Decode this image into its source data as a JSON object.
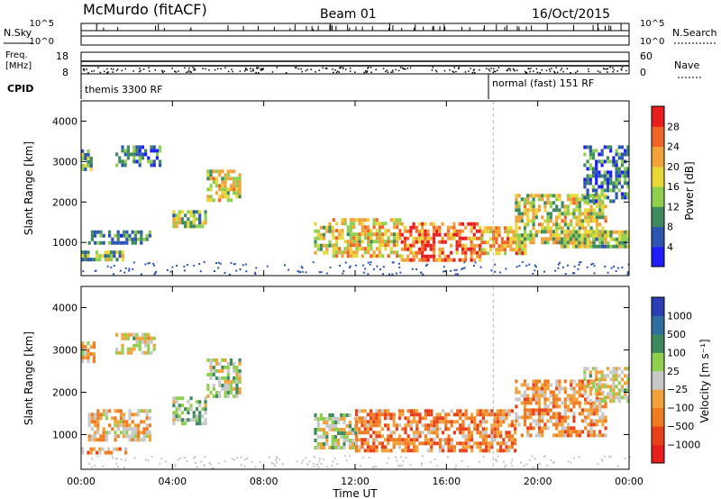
{
  "header": {
    "station": "McMurdo (fitACF)",
    "beam": "Beam 01",
    "date": "16/Oct/2015"
  },
  "top_panels": {
    "nsky_label": "N.Sky",
    "nsearch_label": "N.Search",
    "noise_ticks_left": [
      "10^5",
      "10^0"
    ],
    "noise_ticks_right": [
      "10^5",
      "10^0"
    ],
    "freq_label_1": "Freq.",
    "freq_label_2": "[MHz]",
    "freq_ticks": [
      "18",
      "8"
    ],
    "nave_label": "Nave",
    "nave_ticks": [
      "60",
      "0"
    ],
    "cpid_label": "CPID",
    "cpid_segments": [
      {
        "label": "themis 3300 RF",
        "start_hour": 0
      },
      {
        "label": "normal (fast) 151 RF",
        "start_hour": 18.05
      }
    ]
  },
  "chart_data": [
    {
      "type": "heatmap",
      "title": "",
      "xlabel": "",
      "ylabel": "Slant Range [km]",
      "xlim": [
        0,
        24
      ],
      "ylim": [
        180,
        4500
      ],
      "y_ticks": [
        "1000",
        "2000",
        "3000",
        "4000"
      ],
      "colorbar": {
        "label": "Power [dB]",
        "ticks": [
          "4",
          "8",
          "12",
          "16",
          "20",
          "24",
          "28"
        ],
        "range": [
          0,
          30
        ],
        "colors": [
          "#1c1cff",
          "#2d54b0",
          "#3e8a5e",
          "#8fcf4e",
          "#e8d836",
          "#f2a23a",
          "#f06428",
          "#e81e1e"
        ]
      },
      "echo_regions": [
        {
          "hours": [
            0.0,
            0.5
          ],
          "km": [
            2800,
            3300
          ],
          "db": 10
        },
        {
          "hours": [
            0.0,
            1.8
          ],
          "km": [
            600,
            800
          ],
          "db": 12
        },
        {
          "hours": [
            0.3,
            3.0
          ],
          "km": [
            1000,
            1300
          ],
          "db": 8
        },
        {
          "hours": [
            1.5,
            3.5
          ],
          "km": [
            2900,
            3400
          ],
          "db": 8
        },
        {
          "hours": [
            4.0,
            5.5
          ],
          "km": [
            1400,
            1800
          ],
          "db": 14
        },
        {
          "hours": [
            5.5,
            7.0
          ],
          "km": [
            2000,
            2800
          ],
          "db": 16
        },
        {
          "hours": [
            10.2,
            11.0
          ],
          "km": [
            700,
            1500
          ],
          "db": 16
        },
        {
          "hours": [
            11.0,
            14.0
          ],
          "km": [
            700,
            1600
          ],
          "db": 18
        },
        {
          "hours": [
            14.0,
            17.5
          ],
          "km": [
            600,
            1500
          ],
          "db": 24
        },
        {
          "hours": [
            17.5,
            19.5
          ],
          "km": [
            700,
            1400
          ],
          "db": 20
        },
        {
          "hours": [
            19.0,
            23.0
          ],
          "km": [
            1000,
            2200
          ],
          "db": 16
        },
        {
          "hours": [
            21.0,
            24.0
          ],
          "km": [
            900,
            1300
          ],
          "db": 14
        },
        {
          "hours": [
            22.0,
            24.0
          ],
          "km": [
            2000,
            3400
          ],
          "db": 8
        }
      ]
    },
    {
      "type": "heatmap",
      "title": "",
      "xlabel": "Time UT",
      "ylabel": "Slant Range [km]",
      "xlim": [
        0,
        24
      ],
      "ylim": [
        180,
        4500
      ],
      "x_ticks": [
        "00:00",
        "04:00",
        "08:00",
        "12:00",
        "16:00",
        "20:00",
        "00:00"
      ],
      "y_ticks": [
        "1000",
        "2000",
        "3000",
        "4000"
      ],
      "colorbar": {
        "label": "Velocity [m s⁻¹]",
        "ticks": [
          "1000",
          "500",
          "100",
          "25",
          "−25",
          "−100",
          "−500",
          "−1000"
        ],
        "range": [
          -1000,
          1000
        ],
        "colors": [
          "#2b3fb5",
          "#2f6fa0",
          "#3e8a5e",
          "#8fcf4e",
          "#c8c8c8",
          "#f2a23a",
          "#f07a20",
          "#e8401a",
          "#e81e1e"
        ]
      },
      "echo_regions": [
        {
          "hours": [
            0.0,
            0.6
          ],
          "km": [
            2700,
            3200
          ],
          "v": -200
        },
        {
          "hours": [
            0.0,
            2.0
          ],
          "km": [
            600,
            700
          ],
          "v": -300
        },
        {
          "hours": [
            0.3,
            3.0
          ],
          "km": [
            900,
            1600
          ],
          "v": -150
        },
        {
          "hours": [
            1.5,
            3.2
          ],
          "km": [
            2900,
            3400
          ],
          "v": 0
        },
        {
          "hours": [
            4.0,
            5.5
          ],
          "km": [
            1300,
            1900
          ],
          "v": 200
        },
        {
          "hours": [
            5.5,
            7.0
          ],
          "km": [
            1900,
            2800
          ],
          "v": 150
        },
        {
          "hours": [
            10.2,
            12.0
          ],
          "km": [
            700,
            1500
          ],
          "v": 100
        },
        {
          "hours": [
            12.0,
            19.0
          ],
          "km": [
            600,
            1600
          ],
          "v": -400
        },
        {
          "hours": [
            19.0,
            23.0
          ],
          "km": [
            1000,
            2300
          ],
          "v": -300
        },
        {
          "hours": [
            22.0,
            24.0
          ],
          "km": [
            1800,
            2600
          ],
          "v": 0
        }
      ]
    }
  ]
}
